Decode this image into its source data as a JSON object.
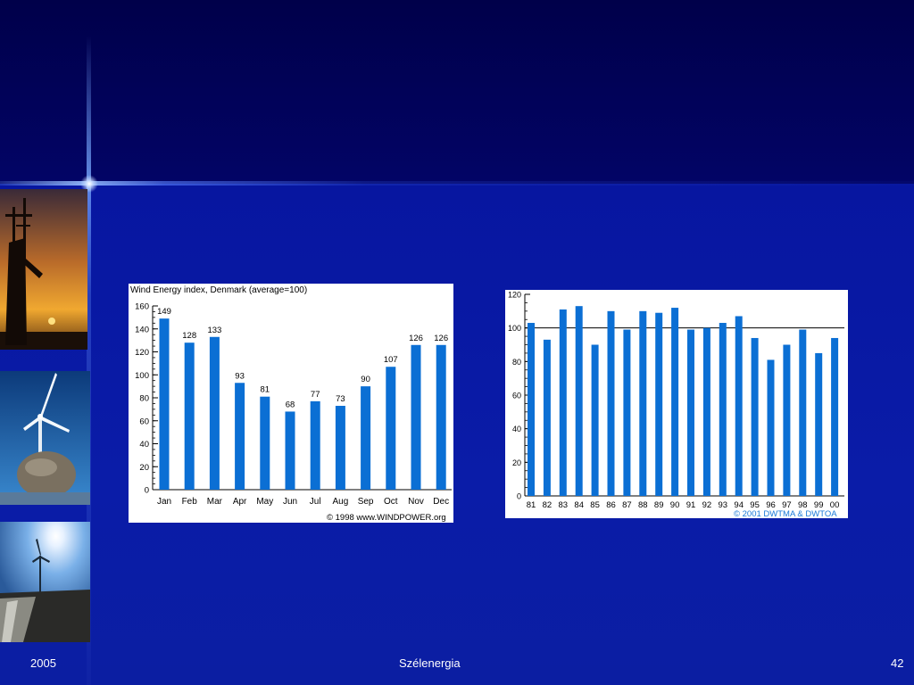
{
  "footer": {
    "left": "2005",
    "center": "Szélenergia",
    "right": "42"
  },
  "colors": {
    "bar": "#0b6fd4",
    "background": "#0a1a9c"
  },
  "chart_data": [
    {
      "type": "bar",
      "title": "Wind Energy index, Denmark (average=100)",
      "categories": [
        "Jan",
        "Feb",
        "Mar",
        "Apr",
        "May",
        "Jun",
        "Jul",
        "Aug",
        "Sep",
        "Oct",
        "Nov",
        "Dec"
      ],
      "values": [
        149,
        128,
        133,
        93,
        81,
        68,
        77,
        73,
        90,
        107,
        126,
        126
      ],
      "data_labels": true,
      "yticks": [
        "0",
        "20",
        "40",
        "60",
        "80",
        "100",
        "120",
        "140",
        "160"
      ],
      "ylim": [
        0,
        160
      ],
      "credit": "© 1998 www.WINDPOWER.org",
      "grid": false
    },
    {
      "type": "bar",
      "categories": [
        "81",
        "82",
        "83",
        "84",
        "85",
        "86",
        "87",
        "88",
        "89",
        "90",
        "91",
        "92",
        "93",
        "94",
        "95",
        "96",
        "97",
        "98",
        "99",
        "00"
      ],
      "values": [
        103,
        93,
        111,
        113,
        90,
        110,
        99,
        110,
        109,
        112,
        99,
        100,
        103,
        107,
        94,
        81,
        90,
        99,
        85,
        94
      ],
      "yticks": [
        "0",
        "20",
        "40",
        "60",
        "80",
        "100",
        "120"
      ],
      "ylim": [
        0,
        120
      ],
      "reference_line": 100,
      "credit": "© 2001 DWTMA & DWTOA",
      "grid": false
    }
  ]
}
